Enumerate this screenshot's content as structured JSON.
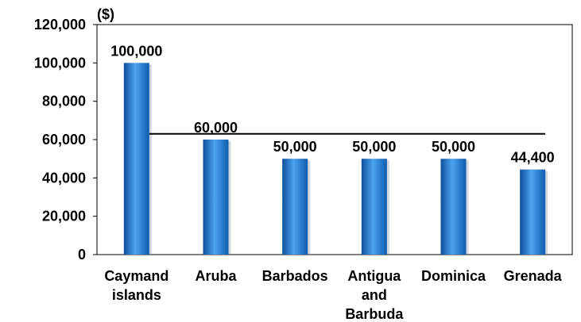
{
  "chart_data": {
    "type": "bar",
    "unit_label": "($)",
    "categories": [
      [
        "Caymand",
        "islands"
      ],
      [
        "Aruba"
      ],
      [
        "Barbados"
      ],
      [
        "Antigua",
        "and",
        "Barbuda"
      ],
      [
        "Dominica"
      ],
      [
        "Grenada"
      ]
    ],
    "values": [
      100000,
      60000,
      50000,
      50000,
      50000,
      44400
    ],
    "data_labels": [
      "100,000",
      "60,000",
      "50,000",
      "50,000",
      "50,000",
      "44,400"
    ],
    "yticks": [
      "0",
      "20,000",
      "40,000",
      "60,000",
      "80,000",
      "100,000",
      "120,000"
    ],
    "ylim": [
      0,
      120000
    ],
    "reference_line": 63000,
    "colors": {
      "bar": "#1f77d0",
      "bar_dark": "#0d4f9a",
      "bar_light": "#4da3ef"
    },
    "grid": false
  }
}
